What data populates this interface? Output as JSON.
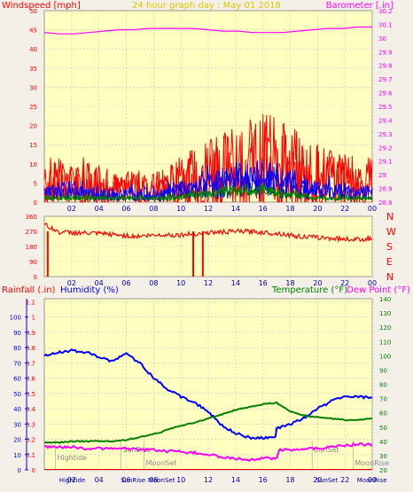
{
  "chart_data": [
    {
      "type": "line",
      "title": "24 hour graph day : May 01 2018",
      "left_label": "Windspeed [mph]",
      "right_label": "Barometer [.in]",
      "x_ticks": [
        "02",
        "04",
        "06",
        "08",
        "10",
        "12",
        "14",
        "16",
        "18",
        "20",
        "22",
        "00"
      ],
      "y_left_ticks": [
        0,
        5,
        10,
        15,
        20,
        25,
        30,
        35,
        40,
        45,
        50
      ],
      "y_left_range": [
        0,
        50
      ],
      "y_right_ticks": [
        "28.8",
        "28.9",
        "29",
        "29.1",
        "29.2",
        "29.3",
        "29.4",
        "29.5",
        "29.6",
        "29.7",
        "29.8",
        "29.9",
        "30",
        "30.1",
        "30.2"
      ],
      "y_right_range": [
        28.8,
        30.2
      ],
      "grid": true,
      "series": [
        {
          "color": "#ff00ff",
          "axis": "right",
          "values": [
            30.04,
            30.03,
            30.03,
            30.04,
            30.05,
            30.06,
            30.06,
            30.07,
            30.07,
            30.07,
            30.07,
            30.06,
            30.05,
            30.05,
            30.04,
            30.04,
            30.04,
            30.05,
            30.06,
            30.07,
            30.07,
            30.08,
            30.08
          ]
        },
        {
          "color": "#ff0000",
          "axis": "left",
          "values": [
            4,
            5,
            4,
            5,
            4,
            3,
            4,
            3,
            4,
            5,
            6,
            7,
            8,
            9,
            10,
            10,
            9,
            8,
            7,
            6,
            6,
            5,
            5
          ]
        },
        {
          "color": "#0000ff",
          "axis": "left",
          "values": [
            2,
            3,
            3,
            2,
            2,
            2,
            2,
            2,
            2,
            3,
            3,
            4,
            5,
            6,
            6,
            6,
            5,
            4,
            3,
            3,
            3,
            2,
            3
          ]
        },
        {
          "color": "#008000",
          "axis": "left",
          "values": [
            1,
            1,
            1,
            1,
            1,
            1,
            1,
            1,
            1,
            1,
            2,
            2,
            3,
            3,
            3,
            3,
            2,
            2,
            1,
            1,
            1,
            1,
            1
          ]
        }
      ]
    },
    {
      "type": "line",
      "y_left_ticks": [
        0,
        90,
        180,
        270,
        360
      ],
      "y_left_range": [
        0,
        360
      ],
      "y_right_labels": [
        "N",
        "W",
        "S",
        "E",
        "N"
      ],
      "x_ticks": [
        "02",
        "04",
        "06",
        "08",
        "10",
        "12",
        "14",
        "16",
        "18",
        "20",
        "22",
        "00"
      ],
      "grid": true,
      "series": [
        {
          "color": "#ff0000",
          "values": [
            310,
            265,
            262,
            258,
            255,
            248,
            240,
            245,
            250,
            248,
            255,
            262,
            266,
            270,
            268,
            262,
            255,
            240,
            235,
            230,
            225,
            222,
            228
          ]
        }
      ]
    },
    {
      "type": "line",
      "left_label_a": "Rainfall (.in)",
      "left_label_b": "Humidity (%)",
      "right_label_a": "Temperature (°F)",
      "right_label_b": "Dew Point (°F)",
      "x_ticks": [
        "02",
        "04",
        "06",
        "08",
        "10",
        "12",
        "14",
        "16",
        "18",
        "20",
        "22",
        "00"
      ],
      "y_rain_ticks": [
        "0",
        "0.1",
        "0.2",
        "0.3",
        "0.4",
        "0.5",
        "0.6",
        "0.7",
        "0.8",
        "0.9",
        "1",
        "1.1"
      ],
      "y_hum_ticks": [
        0,
        10,
        20,
        30,
        40,
        50,
        60,
        70,
        80,
        90,
        100
      ],
      "y_hum_range": [
        0,
        100
      ],
      "y_temp_ticks": [
        20,
        30,
        40,
        50,
        60,
        70,
        80,
        90,
        100,
        110,
        120,
        130,
        140
      ],
      "y_temp_range": [
        20,
        140
      ],
      "grid": true,
      "annotations": [
        {
          "text": "Hightide",
          "x": 0.8
        },
        {
          "text": "SunRise",
          "x": 5.6
        },
        {
          "text": "MoonSet",
          "x": 7.3
        },
        {
          "text": "SunSet",
          "x": 19.6
        },
        {
          "text": "MoonRise",
          "x": 22.6
        }
      ],
      "bottom_annotations": [
        {
          "text": "Hightide",
          "x": 0.5
        },
        {
          "text": "SunRise",
          "x": 5.0
        },
        {
          "text": "MoonSet",
          "x": 7.0
        },
        {
          "text": "SunSet",
          "x": 19.3
        },
        {
          "text": "MoonRise",
          "x": 22.3
        }
      ],
      "series": [
        {
          "color": "#0000ff",
          "axis": "humidity",
          "x": [
            0,
            1,
            2,
            3,
            4,
            5,
            6,
            7,
            8,
            9,
            10,
            11,
            12,
            13,
            14,
            15,
            16,
            16.9,
            17,
            18,
            19,
            20,
            21,
            22,
            23,
            24
          ],
          "values": [
            75,
            77,
            78,
            77,
            74,
            71,
            76,
            70,
            60,
            53,
            48,
            44,
            38,
            29,
            24,
            21,
            21,
            21,
            27,
            30,
            34,
            40,
            45,
            48,
            48,
            47
          ]
        },
        {
          "color": "#008000",
          "axis": "temperature",
          "x": [
            0,
            1,
            2,
            3,
            4,
            5,
            6,
            7,
            8,
            9,
            10,
            11,
            12,
            13,
            14,
            15,
            16,
            17,
            18,
            19,
            20,
            21,
            22,
            23,
            24
          ],
          "values": [
            39,
            39,
            40,
            40,
            40,
            40,
            41,
            43,
            45,
            48,
            51,
            53,
            56,
            59,
            62,
            64,
            66,
            67,
            61,
            58,
            57,
            56,
            55,
            55,
            56
          ]
        },
        {
          "color": "#ff00ff",
          "axis": "temperature",
          "x": [
            0,
            1,
            2,
            3,
            4,
            5,
            6,
            7,
            8,
            9,
            10,
            11,
            12,
            13,
            14,
            15,
            16,
            17,
            17.2,
            18,
            19,
            20,
            21,
            22,
            23,
            24
          ],
          "values": [
            36,
            36,
            36,
            35,
            35,
            35,
            35,
            34,
            34,
            33,
            33,
            32,
            31,
            29,
            28,
            27,
            28,
            28,
            34,
            34,
            35,
            35,
            36,
            37,
            38,
            38
          ]
        }
      ]
    }
  ]
}
